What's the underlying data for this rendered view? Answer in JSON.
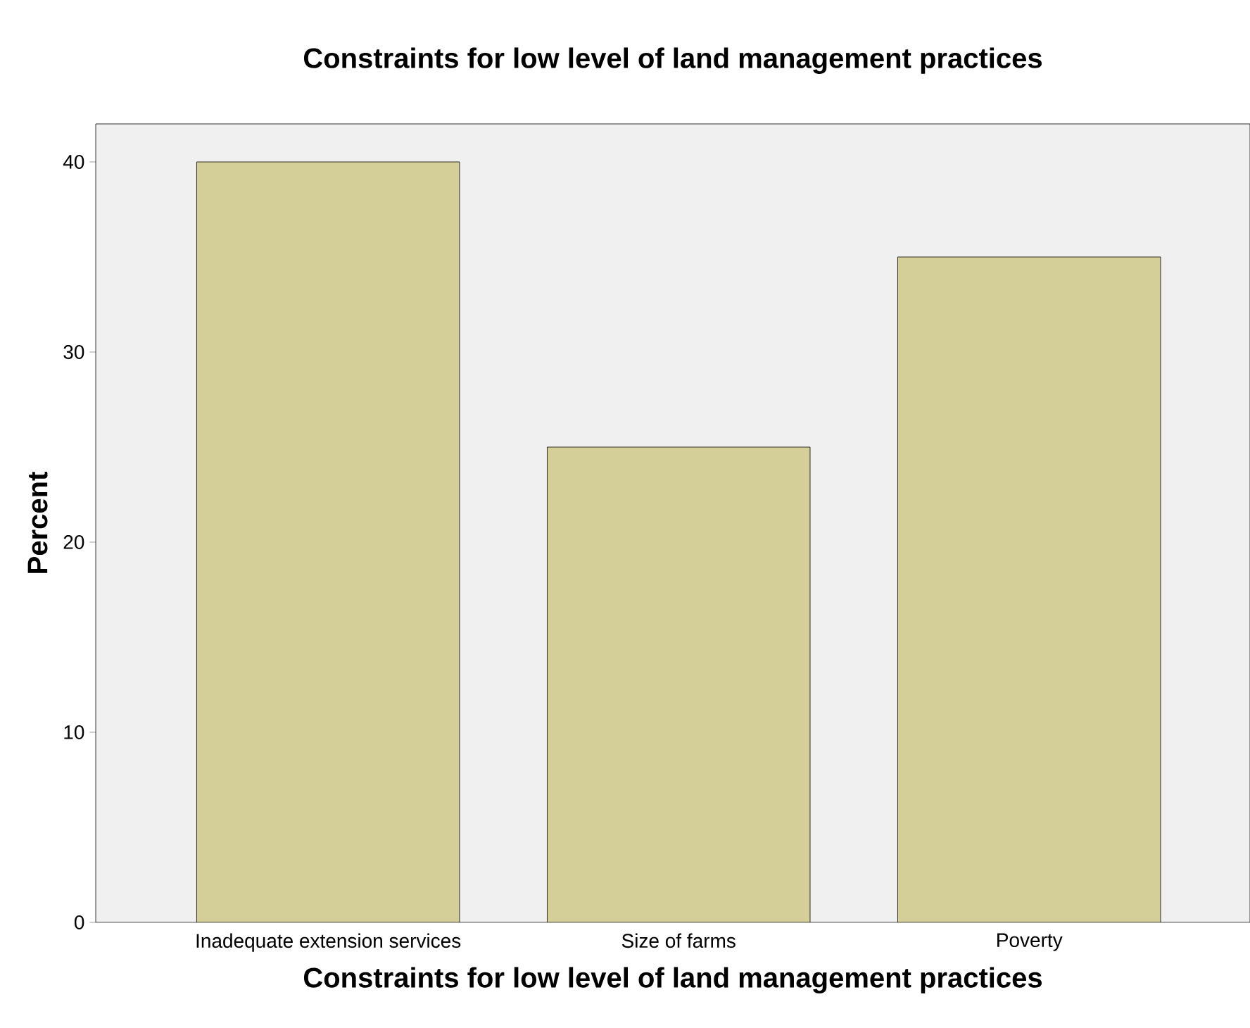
{
  "chart_data": {
    "type": "bar",
    "title": "Constraints for low level of land management practices",
    "xlabel": "Constraints for low level of land management practices",
    "ylabel": "Percent",
    "categories": [
      "Inadequate extension services",
      "Size of farms",
      "Poverty"
    ],
    "values": [
      40,
      25,
      35
    ],
    "color": "#d4cf98",
    "ylim": [
      0,
      42
    ],
    "yticks": [
      0,
      10,
      20,
      30,
      40
    ]
  }
}
